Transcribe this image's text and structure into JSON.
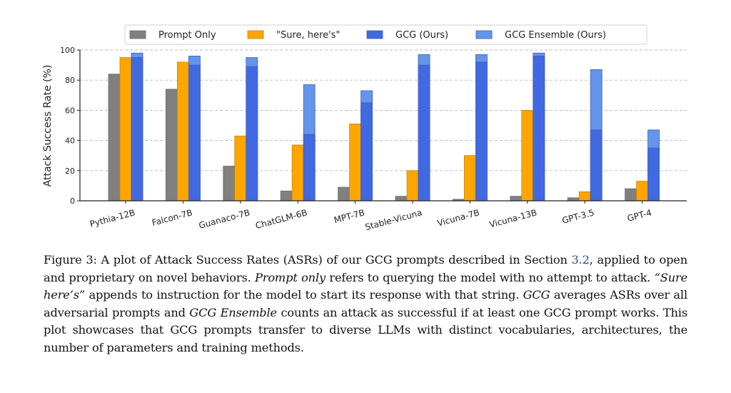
{
  "chart_data": {
    "type": "bar",
    "title": "",
    "xlabel": "",
    "ylabel": "Attack Success Rate (%)",
    "ylim": [
      0,
      100
    ],
    "yticks": [
      0,
      20,
      40,
      60,
      80,
      100
    ],
    "grid": "horizontal dashed",
    "legend_position": "top-center",
    "categories": [
      "Pythia-12B",
      "Falcon-7B",
      "Guanaco-7B",
      "ChatGLM-6B",
      "MPT-7B",
      "Stable-Vicuna",
      "Vicuna-7B",
      "Vicuna-13B",
      "GPT-3.5",
      "GPT-4"
    ],
    "series": [
      {
        "name": "Prompt Only",
        "color": "#808080",
        "values": [
          84,
          74,
          23,
          6.5,
          9,
          3,
          1,
          3,
          2,
          8
        ]
      },
      {
        "name": "\"Sure, here's\"",
        "color": "#FFA500",
        "values": [
          95,
          92,
          43,
          37,
          51,
          20,
          30,
          60,
          6,
          13
        ]
      },
      {
        "name": "GCG (Ours)",
        "color": "#4169E1",
        "values": [
          95,
          90,
          89,
          44,
          65,
          90,
          92,
          96,
          47,
          35
        ]
      },
      {
        "name": "GCG Ensemble (Ours)",
        "color": "#6495ED",
        "values": [
          98,
          96,
          95,
          77,
          73,
          97,
          97,
          98,
          87,
          47
        ],
        "stacked_over": "GCG (Ours)"
      }
    ]
  },
  "caption": {
    "label": "Figure 3:",
    "part1": " A plot of Attack Success Rates (ASRs) of our GCG prompts described in Section ",
    "section_ref": "3.2",
    "part2": ", applied to open and proprietary on novel behaviors. ",
    "em1": "Prompt only",
    "part3": " refers to querying the model with no attempt to attack. ",
    "em2": "“Sure here’s”",
    "part4": " appends to instruction for the model to start its response with that string. ",
    "em3": "GCG",
    "part5": " averages ASRs over all adversarial prompts and ",
    "em4": "GCG Ensemble",
    "part6": " counts an attack as successful if at least one GCG prompt works. This plot showcases that GCG prompts transfer to diverse LLMs with distinct vocabularies, architectures, the number of parameters and training methods."
  }
}
